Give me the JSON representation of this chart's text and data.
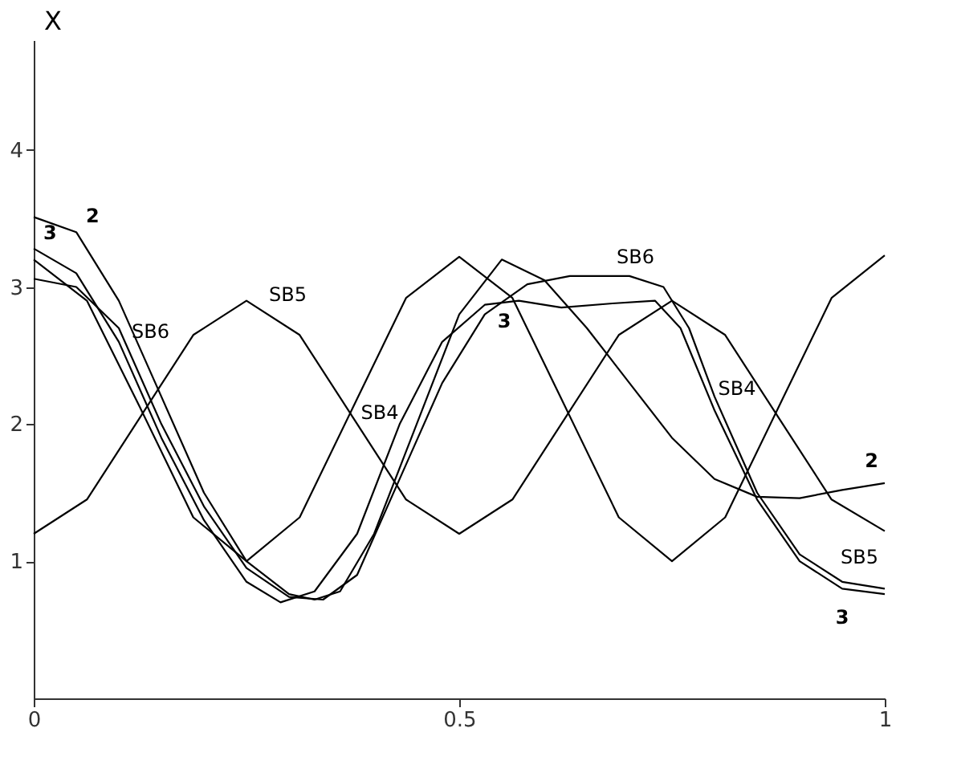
{
  "chart_data": {
    "type": "line",
    "ylabel": "X",
    "xlim": [
      0,
      1
    ],
    "xticks": [
      0,
      0.5,
      1
    ],
    "ylim": [
      0,
      4.8
    ],
    "yticks": [
      1,
      2,
      3,
      4
    ],
    "grid": false,
    "legend": false,
    "marker": "none",
    "line_style": "solid",
    "series": [
      {
        "name": "SB4",
        "color": "#000000",
        "x": [
          0,
          0.0625,
          0.125,
          0.1875,
          0.25,
          0.3125,
          0.375,
          0.4375,
          0.5,
          0.5625,
          0.625,
          0.6875,
          0.75,
          0.8125,
          0.875,
          0.9375,
          1
        ],
        "values": [
          3.2,
          2.9,
          2.12,
          1.32,
          1.0,
          1.32,
          2.12,
          2.92,
          3.22,
          2.92,
          2.12,
          1.32,
          1.0,
          1.32,
          2.12,
          2.92,
          3.23
        ]
      },
      {
        "name": "SB5",
        "color": "#000000",
        "x": [
          0,
          0.0625,
          0.125,
          0.1875,
          0.25,
          0.3125,
          0.375,
          0.4375,
          0.5,
          0.5625,
          0.625,
          0.6875,
          0.75,
          0.8125,
          0.875,
          0.9375,
          1
        ],
        "values": [
          1.2,
          1.45,
          2.05,
          2.65,
          2.9,
          2.65,
          2.05,
          1.45,
          1.2,
          1.45,
          2.05,
          2.65,
          2.9,
          2.65,
          2.05,
          1.45,
          1.22
        ]
      },
      {
        "name": "SB6",
        "color": "#000000",
        "x": [
          0,
          0.05,
          0.1,
          0.15,
          0.2,
          0.25,
          0.3,
          0.34,
          0.38,
          0.43,
          0.48,
          0.53,
          0.58,
          0.63,
          0.7,
          0.74,
          0.77,
          0.8,
          0.85,
          0.9,
          0.95,
          1
        ],
        "values": [
          3.06,
          3.0,
          2.7,
          2.0,
          1.4,
          0.95,
          0.74,
          0.72,
          0.9,
          1.6,
          2.3,
          2.8,
          3.02,
          3.08,
          3.08,
          3.0,
          2.7,
          2.2,
          1.5,
          1.05,
          0.85,
          0.8
        ]
      },
      {
        "name": "2",
        "color": "#000000",
        "x": [
          0,
          0.05,
          0.1,
          0.15,
          0.2,
          0.25,
          0.3,
          0.33,
          0.36,
          0.4,
          0.45,
          0.5,
          0.55,
          0.6,
          0.65,
          0.7,
          0.75,
          0.8,
          0.85,
          0.9,
          0.95,
          1
        ],
        "values": [
          3.51,
          3.4,
          2.9,
          2.2,
          1.5,
          1.0,
          0.76,
          0.72,
          0.78,
          1.2,
          2.0,
          2.8,
          3.2,
          3.05,
          2.7,
          2.3,
          1.9,
          1.6,
          1.47,
          1.46,
          1.52,
          1.57
        ]
      },
      {
        "name": "3",
        "color": "#000000",
        "x": [
          0,
          0.05,
          0.1,
          0.15,
          0.2,
          0.25,
          0.29,
          0.33,
          0.38,
          0.43,
          0.48,
          0.53,
          0.57,
          0.62,
          0.68,
          0.73,
          0.76,
          0.8,
          0.85,
          0.9,
          0.95,
          1
        ],
        "values": [
          3.28,
          3.1,
          2.6,
          1.9,
          1.3,
          0.85,
          0.7,
          0.78,
          1.2,
          2.0,
          2.6,
          2.87,
          2.9,
          2.85,
          2.88,
          2.9,
          2.7,
          2.1,
          1.45,
          1.0,
          0.8,
          0.76
        ]
      }
    ]
  }
}
